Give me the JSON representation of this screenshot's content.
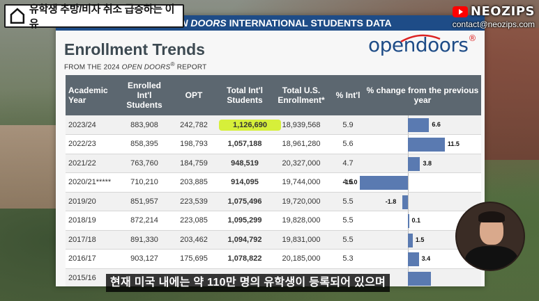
{
  "video_title": "유학생 추방/비자 취소 급증하는 이유",
  "brand": {
    "name": "NEOZIPS",
    "email": "contact@neozips.com"
  },
  "slide": {
    "header_partial_italic": "EN DOORS",
    "header_rest": " INTERNATIONAL STUDENTS DATA",
    "title": "Enrollment Trends",
    "subtitle_prefix": "FROM THE 2024 ",
    "subtitle_italic": "OPEN DOORS",
    "subtitle_reg": "®",
    "subtitle_suffix": " REPORT",
    "logo_text": "opendoors",
    "logo_reg": "®"
  },
  "table": {
    "headers": {
      "year": "Academic Year",
      "enrolled": "Enrolled Int'l Students",
      "opt": "OPT",
      "total_intl": "Total Int'l Students",
      "total_us": "Total U.S. Enrollment*",
      "pct_intl": "% Int'l",
      "pct_change": "% change from the previous year"
    },
    "rows": [
      {
        "year": "2023/24",
        "enrolled": "883,908",
        "opt": "242,782",
        "total_intl": "1,126,690",
        "total_us": "18,939,568",
        "pct_intl": "5.9",
        "change": 6.6,
        "change_label": "6.6"
      },
      {
        "year": "2022/23",
        "enrolled": "858,395",
        "opt": "198,793",
        "total_intl": "1,057,188",
        "total_us": "18,961,280",
        "pct_intl": "5.6",
        "change": 11.5,
        "change_label": "11.5"
      },
      {
        "year": "2021/22",
        "enrolled": "763,760",
        "opt": "184,759",
        "total_intl": "948,519",
        "total_us": "20,327,000",
        "pct_intl": "4.7",
        "change": 3.8,
        "change_label": "3.8"
      },
      {
        "year": "2020/21*****",
        "enrolled": "710,210",
        "opt": "203,885",
        "total_intl": "914,095",
        "total_us": "19,744,000",
        "pct_intl": "4.6",
        "change": -15.0,
        "change_label": "-15.0"
      },
      {
        "year": "2019/20",
        "enrolled": "851,957",
        "opt": "223,539",
        "total_intl": "1,075,496",
        "total_us": "19,720,000",
        "pct_intl": "5.5",
        "change": -1.8,
        "change_label": "-1.8"
      },
      {
        "year": "2018/19",
        "enrolled": "872,214",
        "opt": "223,085",
        "total_intl": "1,095,299",
        "total_us": "19,828,000",
        "pct_intl": "5.5",
        "change": 0.1,
        "change_label": "0.1"
      },
      {
        "year": "2017/18",
        "enrolled": "891,330",
        "opt": "203,462",
        "total_intl": "1,094,792",
        "total_us": "19,831,000",
        "pct_intl": "5.5",
        "change": 1.5,
        "change_label": "1.5"
      },
      {
        "year": "2016/17",
        "enrolled": "903,127",
        "opt": "175,695",
        "total_intl": "1,078,822",
        "total_us": "20,185,000",
        "pct_intl": "5.3",
        "change": 3.4,
        "change_label": "3.4"
      },
      {
        "year": "2015/16",
        "enrolled": "",
        "opt": "",
        "total_intl": "",
        "total_us": "",
        "pct_intl": "",
        "change": 7.1,
        "change_label": ""
      }
    ]
  },
  "caption": "현재 미국 내에는 약 110만 명의 유학생이 등록되어 있으며",
  "colors": {
    "header_bar": "#1e4c87",
    "table_header": "#5c6770",
    "bar": "#5a7ab1",
    "highlight": "#d6ef3a",
    "youtube": "#ff0000"
  }
}
